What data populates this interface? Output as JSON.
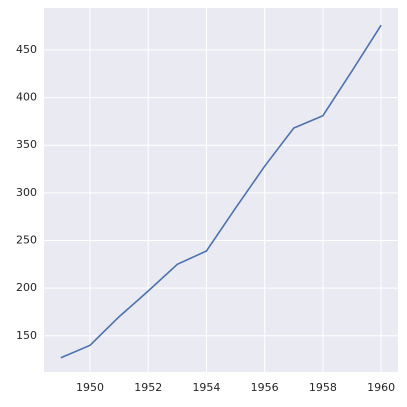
{
  "chart_data": {
    "type": "line",
    "x": [
      1949,
      1950,
      1951,
      1952,
      1953,
      1954,
      1955,
      1956,
      1957,
      1958,
      1959,
      1960
    ],
    "series": [
      {
        "color": "#4c72b0",
        "values": [
          127,
          140,
          170,
          197,
          225,
          239,
          284,
          328,
          368,
          381,
          428,
          476
        ]
      }
    ],
    "xlim": [
      1948.42,
      1960.58
    ],
    "xticks": [
      1950,
      1952,
      1954,
      1956,
      1958,
      1960
    ],
    "ylim": [
      112,
      494
    ],
    "yticks": [
      150,
      200,
      250,
      300,
      350,
      400,
      450
    ],
    "grid": true,
    "background": "#eaeaf2"
  }
}
